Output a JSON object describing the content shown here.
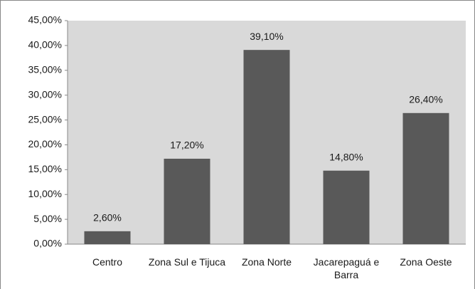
{
  "chart_data": {
    "type": "bar",
    "categories": [
      "Centro",
      "Zona Sul e Tijuca",
      "Zona Norte",
      "Jacarepaguá e Barra",
      "Zona Oeste"
    ],
    "values": [
      2.6,
      17.2,
      39.1,
      14.8,
      26.4
    ],
    "value_labels": [
      "2,60%",
      "17,20%",
      "39,10%",
      "14,80%",
      "26,40%"
    ],
    "color": "#595959",
    "ylim": [
      0,
      45
    ],
    "yticks": [
      {
        "value": 0,
        "label": "0,00%"
      },
      {
        "value": 5,
        "label": "5,00%"
      },
      {
        "value": 10,
        "label": "10,00%"
      },
      {
        "value": 15,
        "label": "15,00%"
      },
      {
        "value": 20,
        "label": "20,00%"
      },
      {
        "value": 25,
        "label": "25,00%"
      },
      {
        "value": 30,
        "label": "30,00%"
      },
      {
        "value": 35,
        "label": "35,00%"
      },
      {
        "value": 40,
        "label": "40,00%"
      },
      {
        "value": 45,
        "label": "45,00%"
      }
    ],
    "grid": false
  }
}
